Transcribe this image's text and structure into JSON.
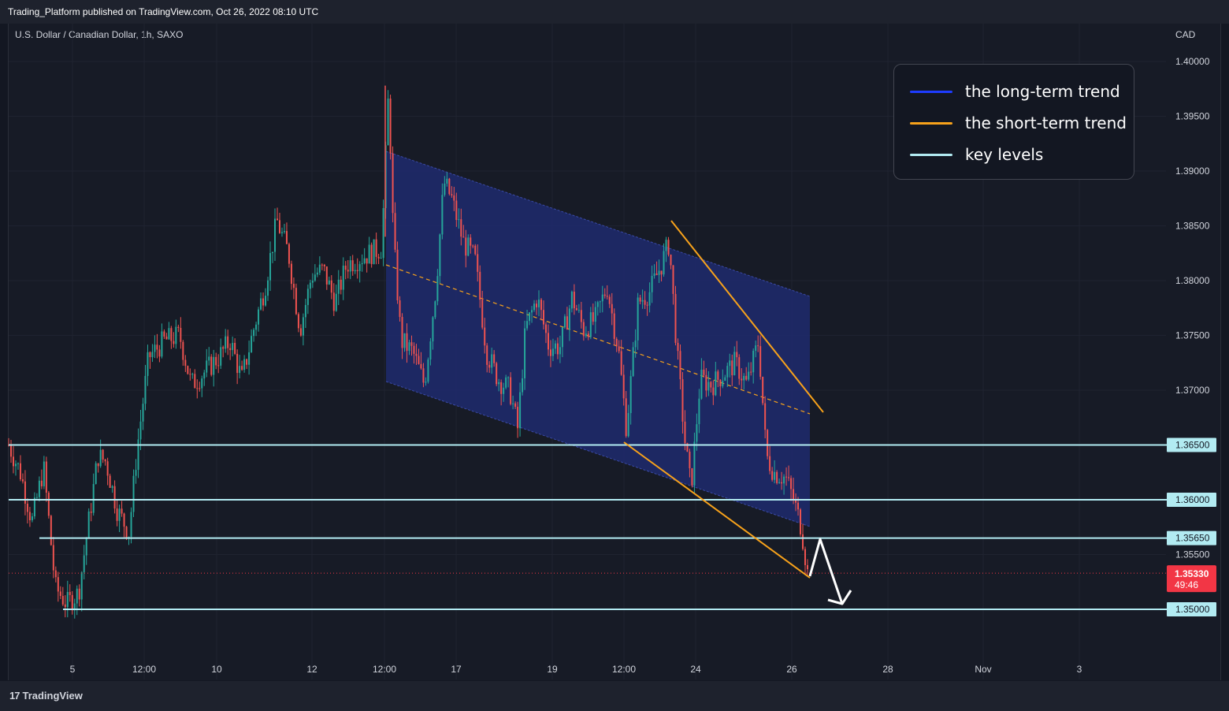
{
  "header": {
    "publish_line": "Trading_Platform published on TradingView.com, Oct 26, 2022 08:10 UTC",
    "symbol_line": "U.S. Dollar / Canadian Dollar, 1h, SAXO",
    "currency": "CAD"
  },
  "footer": {
    "brand": "TradingView",
    "logo": "17"
  },
  "legend": {
    "items": [
      {
        "label": "the long-term trend",
        "color": "#1e3cff"
      },
      {
        "label": "the short-term trend",
        "color": "#f7a21b"
      },
      {
        "label": "key levels",
        "color": "#b2ebf2"
      }
    ]
  },
  "colors": {
    "up": "#26a69a",
    "down": "#ef5350",
    "channel_fill": "#1f2a6e",
    "short_trend": "#f7a21b",
    "key_level": "#b2ebf2",
    "price_label_bg": "#f23645",
    "arrow": "#ffffff"
  },
  "chart_data": {
    "type": "candlestick",
    "title": "U.S. Dollar / Canadian Dollar, 1h, SAXO",
    "y_unit": "CAD",
    "ylim": [
      1.346,
      1.4
    ],
    "y_ticks": [
      "1.40000",
      "1.39500",
      "1.39000",
      "1.38500",
      "1.38000",
      "1.37500",
      "1.37000",
      "1.35500"
    ],
    "x_ticks": [
      "5",
      "12:00",
      "10",
      "12",
      "12:00",
      "17",
      "19",
      "12:00",
      "24",
      "26",
      "28",
      "Nov",
      "3"
    ],
    "key_levels": [
      {
        "value": 1.365,
        "label": "1.36500"
      },
      {
        "value": 1.36,
        "label": "1.36000"
      },
      {
        "value": 1.3565,
        "label": "1.35650"
      },
      {
        "value": 1.35,
        "label": "1.35000"
      }
    ],
    "last_price": {
      "value": 1.3533,
      "label": "1.35330",
      "countdown": "49:46"
    },
    "price_path": [
      [
        0,
        1.365
      ],
      [
        0.015,
        1.3625
      ],
      [
        0.03,
        1.358
      ],
      [
        0.045,
        1.363
      ],
      [
        0.06,
        1.352
      ],
      [
        0.075,
        1.3505
      ],
      [
        0.09,
        1.3515
      ],
      [
        0.1,
        1.3565
      ],
      [
        0.115,
        1.364
      ],
      [
        0.125,
        1.3635
      ],
      [
        0.14,
        1.359
      ],
      [
        0.155,
        1.357
      ],
      [
        0.165,
        1.3645
      ],
      [
        0.18,
        1.373
      ],
      [
        0.2,
        1.3745
      ],
      [
        0.22,
        1.375
      ],
      [
        0.235,
        1.3705
      ],
      [
        0.25,
        1.3715
      ],
      [
        0.27,
        1.373
      ],
      [
        0.285,
        1.3745
      ],
      [
        0.3,
        1.371
      ],
      [
        0.315,
        1.3755
      ],
      [
        0.33,
        1.3795
      ],
      [
        0.345,
        1.3855
      ],
      [
        0.36,
        1.3825
      ],
      [
        0.375,
        1.3755
      ],
      [
        0.39,
        1.3805
      ],
      [
        0.405,
        1.381
      ],
      [
        0.42,
        1.378
      ],
      [
        0.435,
        1.3815
      ],
      [
        0.45,
        1.382
      ],
      [
        0.465,
        1.3825
      ],
      [
        0.48,
        1.383
      ],
      [
        0.489,
        1.3975
      ],
      [
        0.495,
        1.384
      ],
      [
        0.505,
        1.3745
      ],
      [
        0.52,
        1.3735
      ],
      [
        0.535,
        1.3705
      ],
      [
        0.55,
        1.3795
      ],
      [
        0.56,
        1.389
      ],
      [
        0.57,
        1.3875
      ],
      [
        0.585,
        1.3835
      ],
      [
        0.6,
        1.382
      ],
      [
        0.615,
        1.3735
      ],
      [
        0.63,
        1.371
      ],
      [
        0.645,
        1.37
      ],
      [
        0.655,
        1.3665
      ],
      [
        0.665,
        1.3755
      ],
      [
        0.68,
        1.3785
      ],
      [
        0.695,
        1.374
      ],
      [
        0.71,
        1.374
      ],
      [
        0.725,
        1.3785
      ],
      [
        0.74,
        1.3755
      ],
      [
        0.755,
        1.3765
      ],
      [
        0.77,
        1.3795
      ],
      [
        0.785,
        1.3735
      ],
      [
        0.795,
        1.3665
      ],
      [
        0.81,
        1.378
      ],
      [
        0.825,
        1.379
      ],
      [
        0.84,
        1.3815
      ],
      [
        0.85,
        1.3835
      ],
      [
        0.86,
        1.3735
      ],
      [
        0.87,
        1.3655
      ],
      [
        0.878,
        1.361
      ],
      [
        0.89,
        1.371
      ],
      [
        0.905,
        1.3705
      ],
      [
        0.92,
        1.3715
      ],
      [
        0.935,
        1.3725
      ],
      [
        0.95,
        1.3705
      ],
      [
        0.965,
        1.3745
      ],
      [
        0.975,
        1.364
      ],
      [
        0.985,
        1.3625
      ],
      [
        1.0,
        1.362
      ],
      [
        1.01,
        1.36
      ],
      [
        1.02,
        1.3575
      ],
      [
        1.028,
        1.3533
      ]
    ]
  }
}
